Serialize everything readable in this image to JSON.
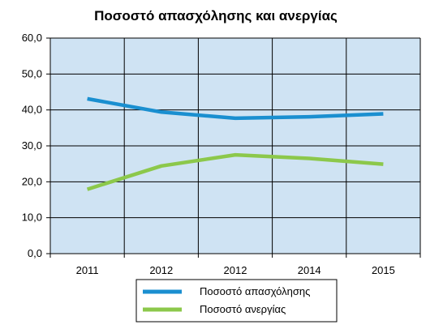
{
  "chart_data": {
    "type": "line",
    "title": "Ποσοστό απασχόλησης και ανεργίας",
    "categories": [
      "2011",
      "2012",
      "2012",
      "2014",
      "2015"
    ],
    "ylim": [
      0,
      60
    ],
    "yticks": [
      "0,0",
      "10,0",
      "20,0",
      "30,0",
      "40,0",
      "50,0",
      "60,0"
    ],
    "grid": true,
    "legend_position": "bottom",
    "series": [
      {
        "name": "Ποσοστό απασχόλησης",
        "values": [
          43.1,
          39.4,
          37.7,
          38.1,
          38.9
        ],
        "color": "#1a8fd0"
      },
      {
        "name": "Ποσοστό ανεργίας",
        "values": [
          17.9,
          24.4,
          27.5,
          26.5,
          24.9
        ],
        "color": "#8cc84b"
      }
    ],
    "plot_background": "#cfe3f3"
  }
}
